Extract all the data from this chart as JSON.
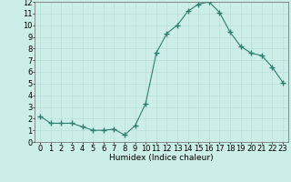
{
  "x": [
    0,
    1,
    2,
    3,
    4,
    5,
    6,
    7,
    8,
    9,
    10,
    11,
    12,
    13,
    14,
    15,
    16,
    17,
    18,
    19,
    20,
    21,
    22,
    23
  ],
  "y": [
    2.2,
    1.6,
    1.6,
    1.6,
    1.3,
    1.0,
    1.0,
    1.1,
    0.6,
    1.4,
    3.3,
    7.6,
    9.3,
    10.0,
    11.2,
    11.8,
    12.0,
    11.1,
    9.4,
    8.2,
    7.6,
    7.4,
    6.4,
    5.1
  ],
  "line_color": "#2e7d6e",
  "marker": "+",
  "marker_size": 4,
  "background_color": "#cceee8",
  "grid_color": "#b8ddd8",
  "xlabel": "Humidex (Indice chaleur)",
  "ylim": [
    0,
    12
  ],
  "xlim": [
    -0.5,
    23.5
  ],
  "yticks": [
    0,
    1,
    2,
    3,
    4,
    5,
    6,
    7,
    8,
    9,
    10,
    11,
    12
  ],
  "xticks": [
    0,
    1,
    2,
    3,
    4,
    5,
    6,
    7,
    8,
    9,
    10,
    11,
    12,
    13,
    14,
    15,
    16,
    17,
    18,
    19,
    20,
    21,
    22,
    23
  ],
  "xlabel_fontsize": 6.5,
  "tick_fontsize": 6.0
}
